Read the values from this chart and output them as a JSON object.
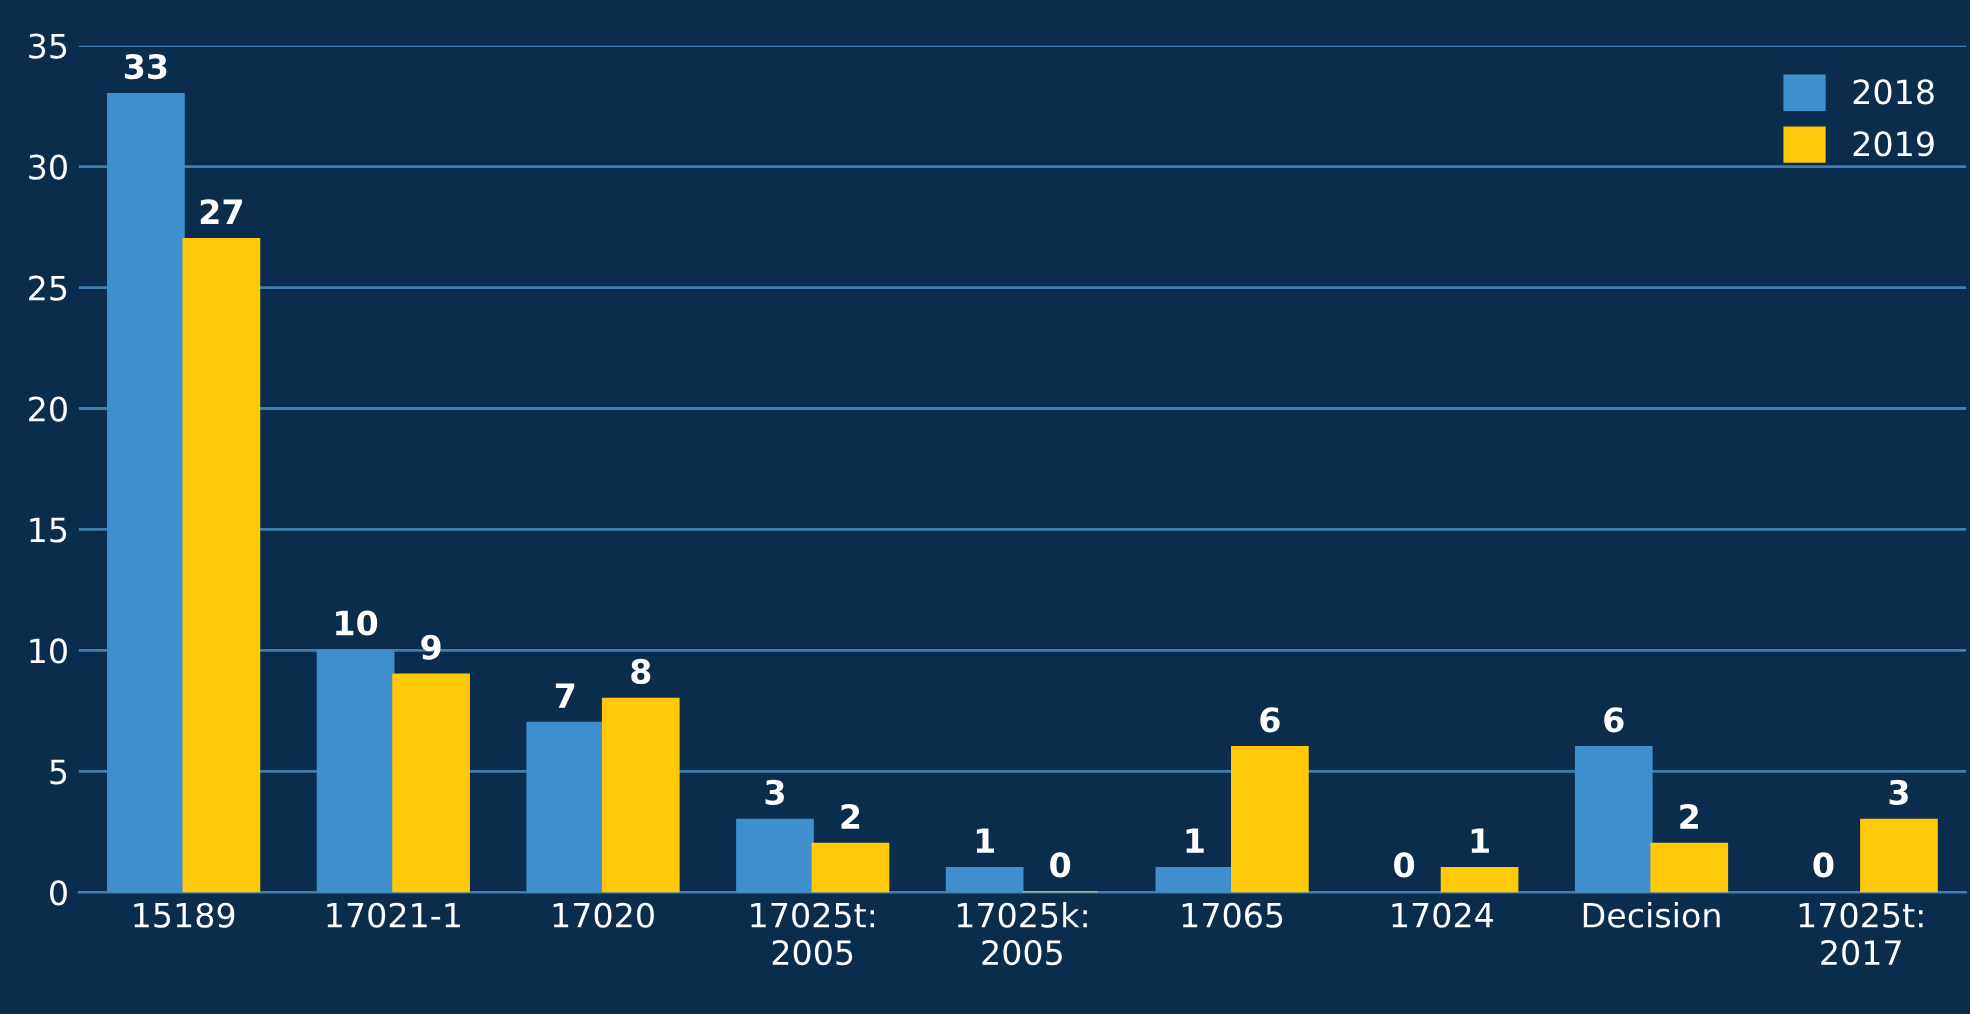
{
  "chart_data": {
    "type": "bar",
    "categories": [
      "15189",
      "17021-1",
      "17020",
      "17025t:\n2005",
      "17025k:\n2005",
      "17065",
      "17024",
      "Decision",
      "17025t:\n2017"
    ],
    "series": [
      {
        "name": "2018",
        "color": "#3f8fce",
        "values": [
          33,
          10,
          7,
          3,
          1,
          1,
          0,
          6,
          0
        ]
      },
      {
        "name": "2019",
        "color": "#ffc90a",
        "values": [
          27,
          9,
          8,
          2,
          0,
          6,
          1,
          2,
          3
        ]
      }
    ],
    "ylim": [
      0,
      35
    ],
    "yticks": [
      0,
      5,
      10,
      15,
      20,
      25,
      30,
      35
    ],
    "grid": "y",
    "legend": "top right",
    "data_labels": true
  }
}
